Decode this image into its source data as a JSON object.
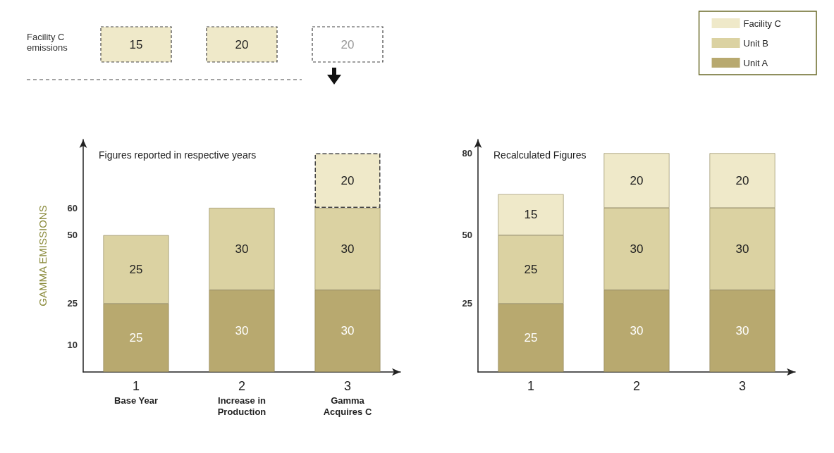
{
  "chart_data": [
    {
      "type": "bar",
      "stacked": true,
      "title": "Figures reported in respective years",
      "ylabel": "GAMMA EMISSIONS",
      "categories": [
        "1\nBase Year",
        "2\nIncrease in\nProduction",
        "3\nGamma\nAcquires C"
      ],
      "ylim": [
        0,
        85
      ],
      "yticks": [
        10,
        25,
        50,
        60
      ],
      "data_labels": true,
      "legend": false,
      "grid": false,
      "annotations": [
        "Facility C\nemissions",
        "15",
        "20",
        "20"
      ],
      "series": [
        {
          "color": "#b8a96f",
          "values": [
            25,
            30,
            30
          ]
        },
        {
          "color": "#dbd2a2",
          "values": [
            25,
            30,
            30
          ]
        },
        {
          "color": "#efe9c9",
          "values": [
            null,
            null,
            20
          ],
          "line_style": "dashed"
        }
      ]
    },
    {
      "type": "bar",
      "stacked": true,
      "title": "Recalculated Figures",
      "categories": [
        "1",
        "2",
        "3"
      ],
      "ylim": [
        0,
        85
      ],
      "yticks": [
        25,
        50,
        80
      ],
      "data_labels": true,
      "legend": "top right",
      "grid": false,
      "series": [
        {
          "name": "Unit A",
          "color": "#b8a96f",
          "values": [
            25,
            30,
            30
          ]
        },
        {
          "name": "Unit B",
          "color": "#dbd2a2",
          "values": [
            25,
            30,
            30
          ]
        },
        {
          "name": "Facility C",
          "color": "#efe9c9",
          "values": [
            15,
            20,
            20
          ]
        }
      ]
    }
  ]
}
